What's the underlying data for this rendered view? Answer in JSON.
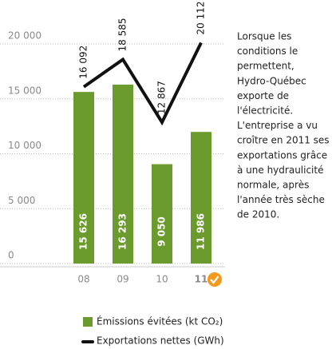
{
  "chart_data": {
    "type": "bar_line",
    "categories": [
      "08",
      "09",
      "10",
      "11"
    ],
    "series": [
      {
        "name": "Émissions évitées (kt CO₂)",
        "type": "bar",
        "color": "#6b9a2d",
        "values": [
          15626,
          16293,
          9050,
          11986
        ],
        "value_labels": [
          "15 626",
          "16 293",
          "9 050",
          "11 986"
        ]
      },
      {
        "name": "Exportations nettes (GWh)",
        "type": "line",
        "color": "#111111",
        "values": [
          16092,
          18585,
          12867,
          20112
        ],
        "value_labels": [
          "16 092",
          "18 585",
          "12 867",
          "20 112"
        ]
      }
    ],
    "ylim": [
      0,
      20000
    ],
    "yticks": [
      0,
      {
        "value": 5000,
        "label": "5 000"
      },
      {
        "value": 10000,
        "label": "10 000"
      },
      {
        "value": 15000,
        "label": "15 000"
      },
      {
        "value": 20000,
        "label": "20 000"
      }
    ],
    "grid": true,
    "annotation": [
      "Lorsque les",
      "conditions le",
      "permettent,",
      "Hydro-Québec",
      "exporte de",
      "l'électricité.",
      "L'entreprise a vu",
      "croître en 2011 ses",
      "exportations grâce",
      "à une hydraulicité",
      "normale, après",
      "l'année très sèche",
      "de 2010."
    ]
  }
}
